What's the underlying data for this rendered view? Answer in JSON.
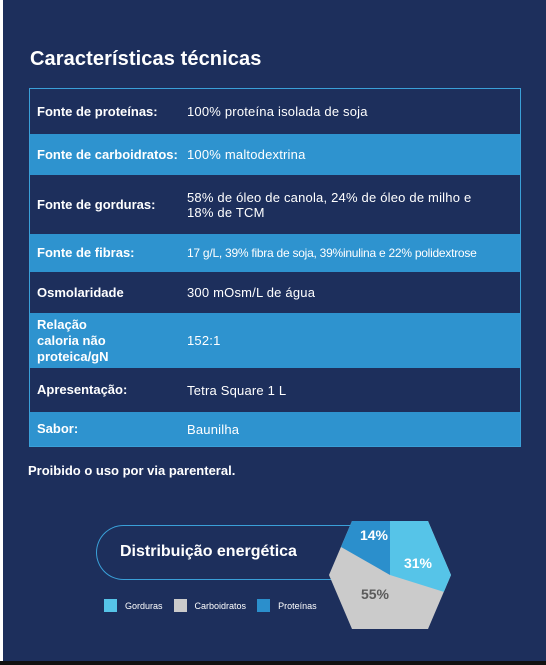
{
  "title": "Características técnicas",
  "table": [
    {
      "label": "Fonte de proteínas:",
      "value": "100% proteína isolada de soja"
    },
    {
      "label": "Fonte de carboidratos:",
      "value": "100% maltodextrina"
    },
    {
      "label": "Fonte de gorduras:",
      "value": "58% de óleo de canola, 24% de óleo de milho e 18% de TCM"
    },
    {
      "label": "Fonte de fibras:",
      "value": "17 g/L, 39% fibra de soja, 39%inulina e 22% polidextrose"
    },
    {
      "label": "Osmolaridade",
      "value": "300 mOsm/L de água"
    },
    {
      "label": "Relação caloria não proteica/gN",
      "value": "152:1"
    },
    {
      "label": "Apresentação:",
      "value": "Tetra Square 1 L"
    },
    {
      "label": "Sabor:",
      "value": "Baunilha"
    }
  ],
  "notice": "Proibido o uso por via parenteral.",
  "energy": {
    "title": "Distribuição energética",
    "labels": {
      "proteinas": "14%",
      "gorduras": "31%",
      "carboidratos": "55%"
    },
    "colors": {
      "gorduras": "#56c4e8",
      "carboidratos": "#cbcbcb",
      "proteinas": "#2b8fcc"
    }
  },
  "chart_data": {
    "type": "pie",
    "title": "Distribuição energética",
    "categories": [
      "Gorduras",
      "Carboidratos",
      "Proteínas"
    ],
    "values": [
      31,
      55,
      14
    ],
    "legend": "bottom"
  }
}
